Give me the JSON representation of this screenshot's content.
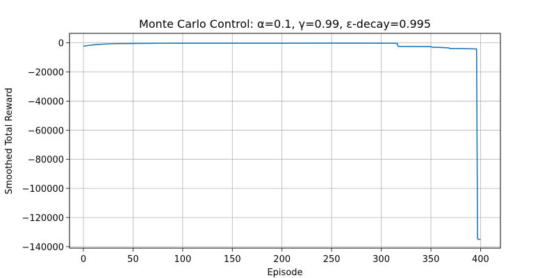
{
  "chart_data": {
    "type": "line",
    "title": "Monte Carlo Control: α=0.1, γ=0.99, ε-decay=0.995",
    "xlabel": "Episode",
    "ylabel": "Smoothed Total Reward",
    "xlim": [
      -14,
      420
    ],
    "ylim": [
      -141000,
      6500
    ],
    "xticks": [
      0,
      50,
      100,
      150,
      200,
      250,
      300,
      350,
      400
    ],
    "yticks": [
      0,
      -20000,
      -40000,
      -60000,
      -80000,
      -100000,
      -120000,
      -140000
    ],
    "grid": true,
    "line_color": "#1f77b4",
    "series": [
      {
        "x": [
          0,
          5,
          10,
          15,
          20,
          30,
          40,
          60,
          80,
          100,
          150,
          200,
          250,
          300,
          310,
          316,
          317,
          320,
          350,
          351,
          360,
          368,
          369,
          380,
          396,
          397,
          398,
          400
        ],
        "y": [
          -2300,
          -1800,
          -1400,
          -1100,
          -900,
          -600,
          -500,
          -400,
          -300,
          -250,
          -250,
          -250,
          -200,
          -250,
          -300,
          -400,
          -2400,
          -2500,
          -2600,
          -3000,
          -3200,
          -3500,
          -3900,
          -3900,
          -4200,
          -134500,
          -135000,
          -135000
        ]
      }
    ]
  }
}
